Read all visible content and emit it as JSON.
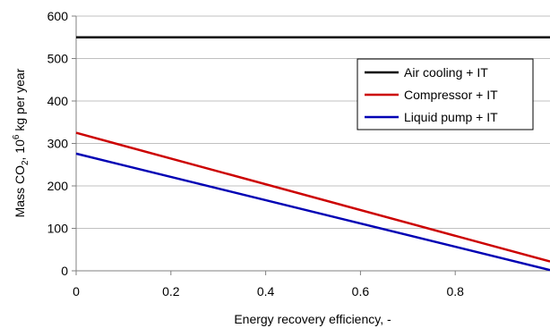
{
  "chart_data": {
    "type": "line",
    "title": "",
    "xlabel": "Energy recovery efficiency, -",
    "ylabel": {
      "prefix": "Mass CO",
      "sub": "2",
      "mid": ", 10",
      "sup": "6",
      "suffix": " kg per year"
    },
    "xlim": [
      0,
      1
    ],
    "ylim": [
      0,
      600
    ],
    "xticks": [
      0,
      0.2,
      0.4,
      0.6,
      0.8
    ],
    "xtick_labels": [
      "0",
      "0.2",
      "0.4",
      "0.6",
      "0.8"
    ],
    "yticks": [
      0,
      100,
      200,
      300,
      400,
      500,
      600
    ],
    "ytick_labels": [
      "0",
      "100",
      "200",
      "300",
      "400",
      "500",
      "600"
    ],
    "grid": "horizontal",
    "legend_position": "top-right",
    "series": [
      {
        "name": "Air cooling + IT",
        "color": "#000000",
        "x": [
          0,
          1
        ],
        "y": [
          550,
          550
        ]
      },
      {
        "name": "Compressor + IT",
        "color": "#cc0000",
        "x": [
          0,
          1
        ],
        "y": [
          325,
          22
        ]
      },
      {
        "name": "Liquid pump + IT",
        "color": "#0000b4",
        "x": [
          0,
          1
        ],
        "y": [
          276,
          2
        ]
      }
    ]
  }
}
